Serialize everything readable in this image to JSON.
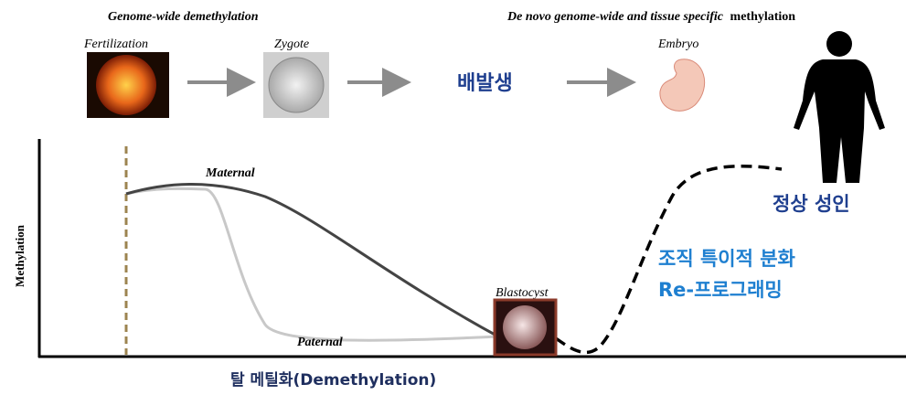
{
  "header": {
    "left": "Genome-wide demethylation",
    "right_italic": "De novo  genome-wide and tissue specific",
    "right_bold": "methylation"
  },
  "stages": {
    "fertilization": "Fertilization",
    "zygote": "Zygote",
    "embryogenesis": "배발생",
    "embryo": "Embryo"
  },
  "curves": {
    "maternal": "Maternal",
    "paternal": "Paternal",
    "blastocyst": "Blastocyst"
  },
  "axis": {
    "y_label": "Methylation",
    "x_label": "탈 메틸화(Demethylation)"
  },
  "annotations": {
    "adult": "정상 성인",
    "differentiation": "조직 특이적 분화",
    "reprogramming": "Re-프로그래밍"
  }
}
